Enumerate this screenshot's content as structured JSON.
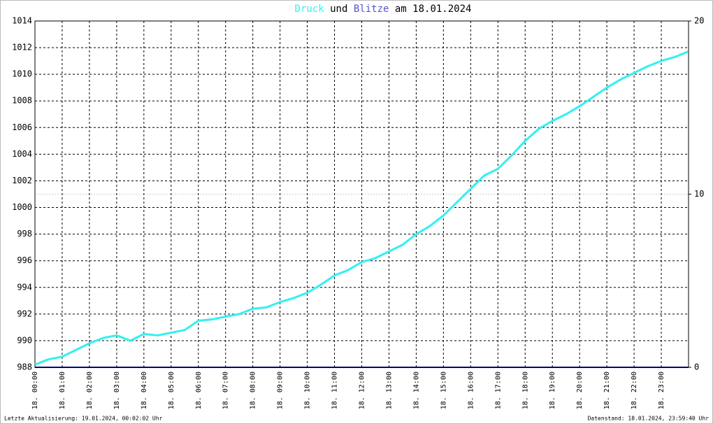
{
  "chart_data": {
    "type": "line",
    "title_connector": "und",
    "title_date": "am 18.01.2024",
    "x": [
      0,
      0.5,
      1,
      1.5,
      2,
      2.5,
      3,
      3.5,
      4,
      4.5,
      5,
      5.5,
      6,
      6.5,
      7,
      7.5,
      8,
      8.5,
      9,
      9.5,
      10,
      10.5,
      11,
      11.5,
      12,
      12.5,
      13,
      13.5,
      14,
      14.5,
      15,
      15.5,
      16,
      16.5,
      17,
      17.5,
      18,
      18.5,
      19,
      19.5,
      20,
      20.5,
      21,
      21.5,
      22,
      22.5,
      23,
      23.5,
      23.99
    ],
    "series": [
      {
        "name": "Druck",
        "color": "#33f0f0",
        "values": [
          988.2,
          988.6,
          988.8,
          989.3,
          989.8,
          990.2,
          990.4,
          990.0,
          990.5,
          990.4,
          990.6,
          990.8,
          991.5,
          991.6,
          991.8,
          992.0,
          992.4,
          992.5,
          992.9,
          993.2,
          993.6,
          994.2,
          994.9,
          995.3,
          995.9,
          996.2,
          996.7,
          997.2,
          998.0,
          998.6,
          999.4,
          1000.4,
          1001.4,
          1002.4,
          1002.9,
          1003.9,
          1005.0,
          1005.9,
          1006.5,
          1007.0,
          1007.6,
          1008.3,
          1009.0,
          1009.6,
          1010.1,
          1010.6,
          1011.0,
          1011.3,
          1011.7
        ]
      },
      {
        "name": "Blitze",
        "color": "#000080",
        "axis": "y2",
        "values": [
          0,
          0,
          0,
          0,
          0,
          0,
          0,
          0,
          0,
          0,
          0,
          0,
          0,
          0,
          0,
          0,
          0,
          0,
          0,
          0,
          0,
          0,
          0,
          0,
          0,
          0,
          0,
          0,
          0,
          0,
          0,
          0,
          0,
          0,
          0,
          0,
          0,
          0,
          0,
          0,
          0,
          0,
          0,
          0,
          0,
          0,
          0,
          0,
          0
        ]
      }
    ],
    "xlim": [
      0,
      24
    ],
    "xticks": [
      {
        "value": 0,
        "label": "18. 00:00"
      },
      {
        "value": 1,
        "label": "18. 01:00"
      },
      {
        "value": 2,
        "label": "18. 02:00"
      },
      {
        "value": 3,
        "label": "18. 03:00"
      },
      {
        "value": 4,
        "label": "18. 04:00"
      },
      {
        "value": 5,
        "label": "18. 05:00"
      },
      {
        "value": 6,
        "label": "18. 06:00"
      },
      {
        "value": 7,
        "label": "18. 07:00"
      },
      {
        "value": 8,
        "label": "18. 08:00"
      },
      {
        "value": 9,
        "label": "18. 09:00"
      },
      {
        "value": 10,
        "label": "18. 10:00"
      },
      {
        "value": 11,
        "label": "18. 11:00"
      },
      {
        "value": 12,
        "label": "18. 12:00"
      },
      {
        "value": 13,
        "label": "18. 13:00"
      },
      {
        "value": 14,
        "label": "18. 14:00"
      },
      {
        "value": 15,
        "label": "18. 15:00"
      },
      {
        "value": 16,
        "label": "18. 16:00"
      },
      {
        "value": 17,
        "label": "18. 17:00"
      },
      {
        "value": 18,
        "label": "18. 18:00"
      },
      {
        "value": 19,
        "label": "18. 19:00"
      },
      {
        "value": 20,
        "label": "18. 20:00"
      },
      {
        "value": 21,
        "label": "18. 21:00"
      },
      {
        "value": 22,
        "label": "18. 22:00"
      },
      {
        "value": 23,
        "label": "18. 23:00"
      }
    ],
    "ylim": [
      988,
      1014
    ],
    "yticks": [
      988,
      990,
      992,
      994,
      996,
      998,
      1000,
      1002,
      1004,
      1006,
      1008,
      1010,
      1012,
      1014
    ],
    "y2lim": [
      0,
      20
    ],
    "y2ticks": [
      0,
      10,
      20
    ],
    "grid": true,
    "footer_left": "Letzte Aktualisierung: 19.01.2024, 00:02:02 Uhr",
    "footer_right": "Datenstand: 18.01.2024, 23:59:40 Uhr"
  }
}
